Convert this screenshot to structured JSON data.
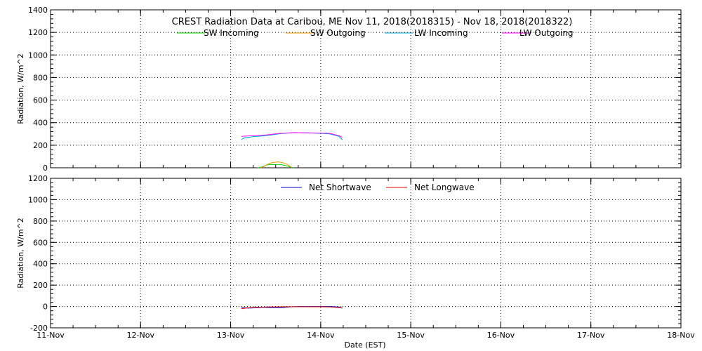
{
  "title": "CREST Radiation Data at Caribou, ME   Nov 11, 2018(2018315) - Nov 18, 2018(2018322)",
  "xlabel": "Date (EST)",
  "x_ticks": [
    "11-Nov",
    "12-Nov",
    "13-Nov",
    "14-Nov",
    "15-Nov",
    "16-Nov",
    "17-Nov",
    "18-Nov"
  ],
  "chart_data": [
    {
      "type": "line",
      "ylabel": "Radiation, W/m^2",
      "xlim": [
        0,
        7
      ],
      "ylim": [
        0,
        1400
      ],
      "y_ticks": [
        0,
        200,
        400,
        600,
        800,
        1000,
        1200,
        1400
      ],
      "grid": true,
      "legend_placement": "top",
      "series": [
        {
          "name": "SW Incoming",
          "color": "#00cc00",
          "x": [
            2.3,
            2.35,
            2.4,
            2.45,
            2.5,
            2.55,
            2.6,
            2.65,
            2.7
          ],
          "y": [
            0,
            8,
            25,
            30,
            28,
            30,
            22,
            10,
            0
          ]
        },
        {
          "name": "SW Outgoing",
          "color": "#ee9900",
          "x": [
            2.33,
            2.38,
            2.43,
            2.48,
            2.53,
            2.58,
            2.63,
            2.68
          ],
          "y": [
            0,
            15,
            40,
            48,
            52,
            45,
            30,
            0
          ]
        },
        {
          "name": "LW Incoming",
          "color": "#00aacc",
          "x": [
            2.12,
            2.15,
            2.25,
            2.4,
            2.55,
            2.7,
            2.85,
            3.0,
            3.1,
            3.2,
            3.24
          ],
          "y": [
            250,
            265,
            275,
            285,
            302,
            312,
            310,
            305,
            300,
            280,
            248
          ]
        },
        {
          "name": "LW Outgoing",
          "color": "#ff00ff",
          "x": [
            2.12,
            2.25,
            2.4,
            2.55,
            2.7,
            2.85,
            3.0,
            3.1,
            3.2,
            3.24
          ],
          "y": [
            278,
            285,
            292,
            305,
            312,
            310,
            308,
            305,
            285,
            270
          ]
        }
      ]
    },
    {
      "type": "line",
      "ylabel": "Radiation, W/m^2",
      "xlim": [
        0,
        7
      ],
      "ylim": [
        -200,
        1200
      ],
      "y_ticks": [
        -200,
        0,
        200,
        400,
        600,
        800,
        1000,
        1200
      ],
      "grid": true,
      "legend_placement": "top",
      "series": [
        {
          "name": "Net Shortwave",
          "color": "#0000cc",
          "x": [
            2.12,
            2.2,
            2.3,
            2.35,
            2.45,
            2.55,
            2.65,
            2.75,
            2.9,
            3.0,
            3.1,
            3.2,
            3.24
          ],
          "y": [
            -10,
            -15,
            -12,
            -8,
            -10,
            -12,
            -5,
            0,
            0,
            0,
            0,
            -5,
            -15
          ]
        },
        {
          "name": "Net Longwave",
          "color": "#dd0000",
          "x": [
            2.12,
            2.2,
            2.3,
            2.4,
            2.55,
            2.7,
            2.85,
            3.0,
            3.1,
            3.2,
            3.24
          ],
          "y": [
            -20,
            -12,
            -8,
            -5,
            -3,
            -2,
            -3,
            -3,
            -5,
            -10,
            -15
          ]
        }
      ]
    }
  ]
}
